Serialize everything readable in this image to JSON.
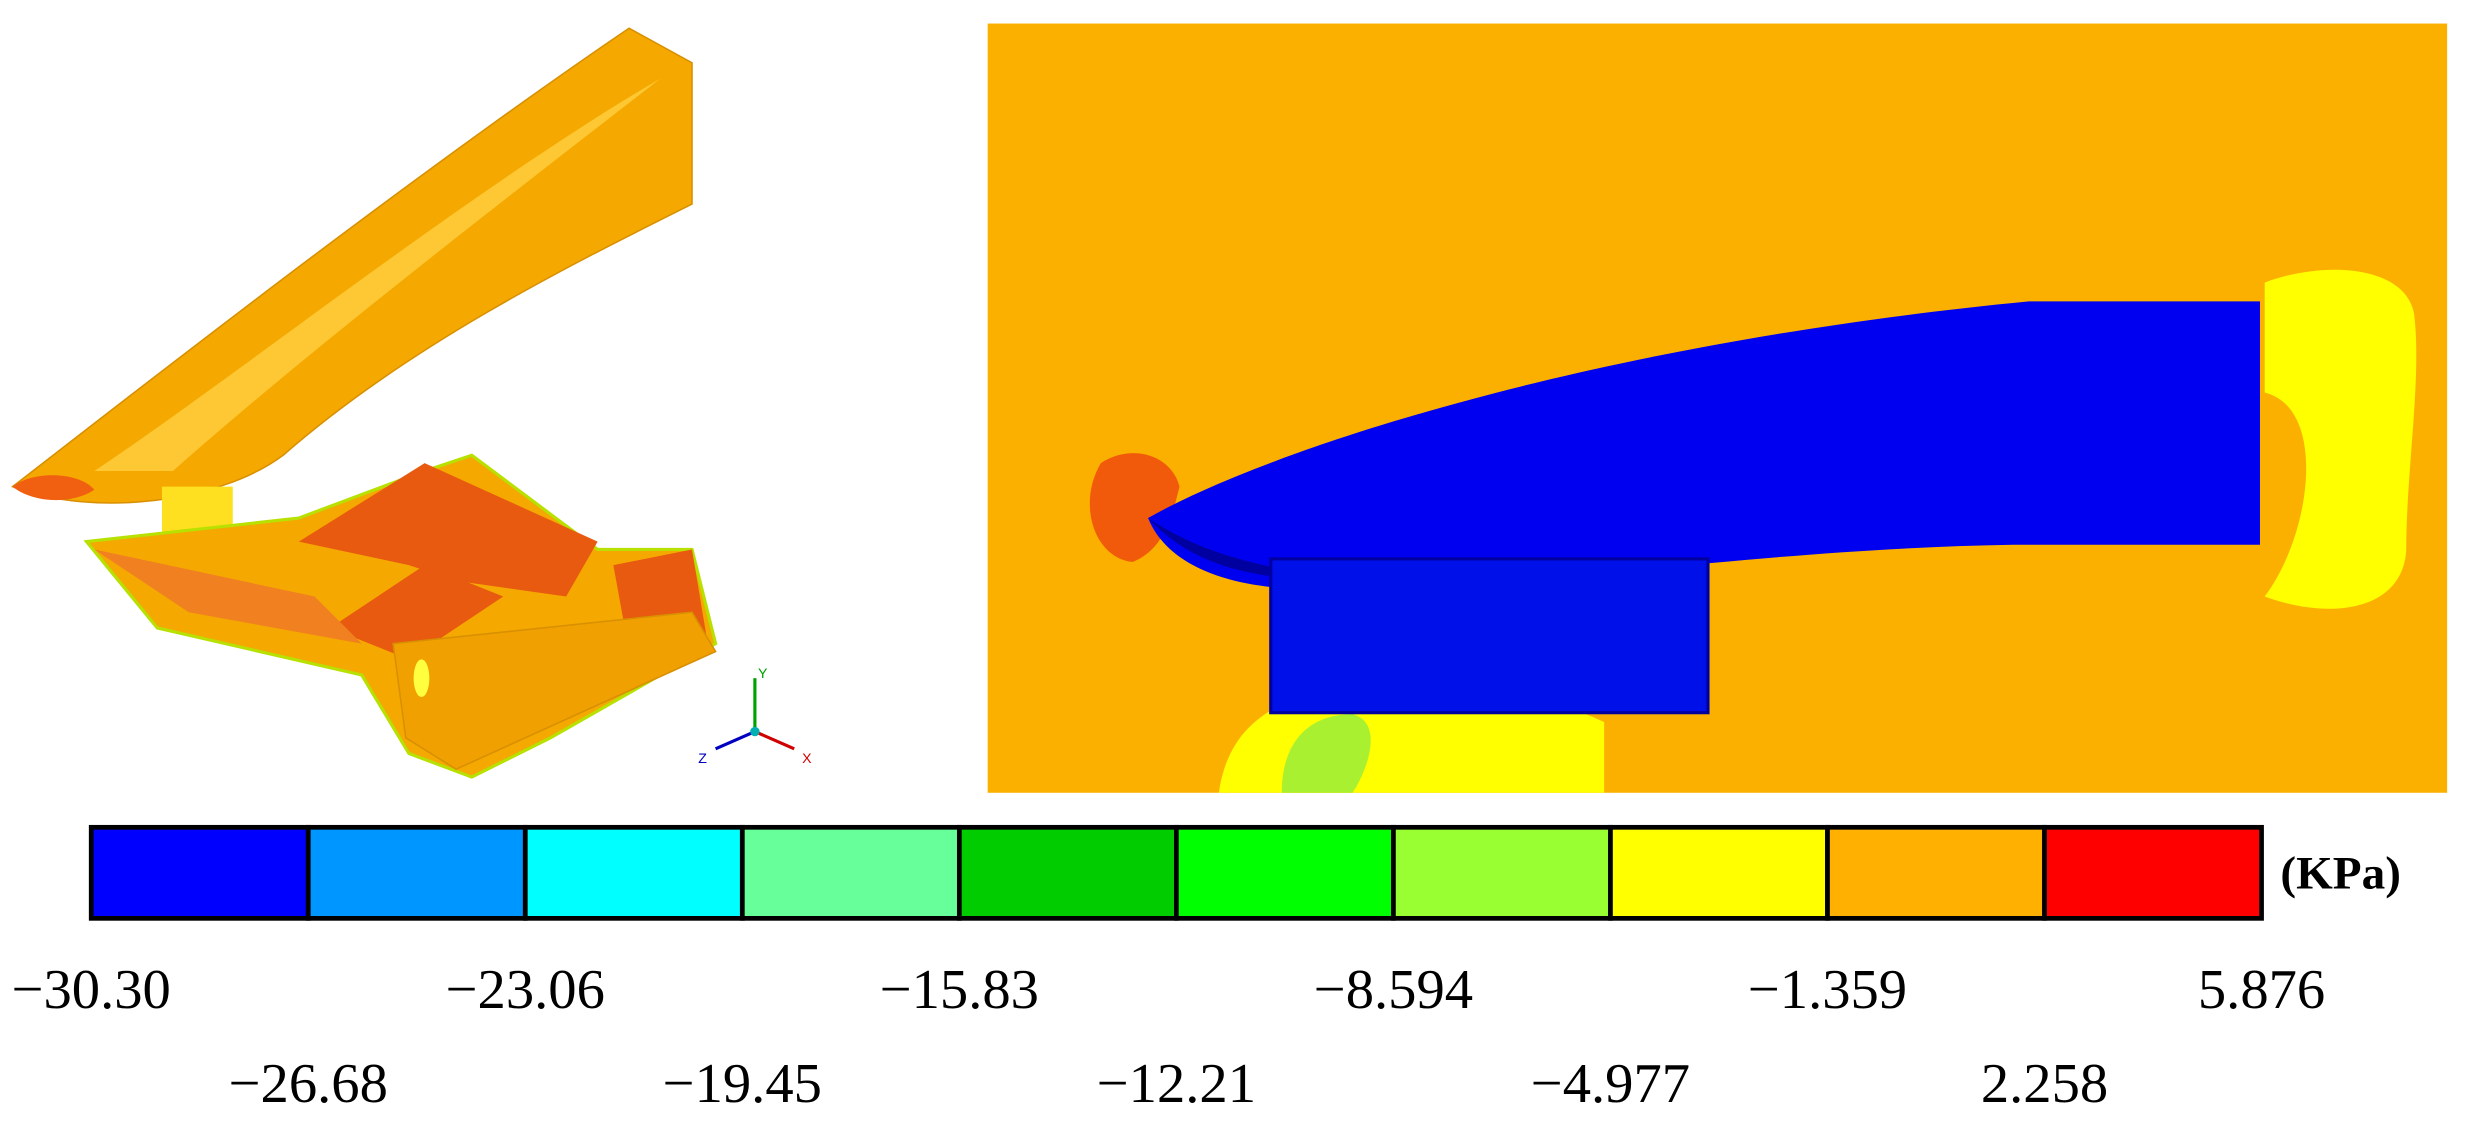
{
  "colorbar": {
    "unit": "(KPa)",
    "colors": [
      "#0000ff",
      "#0096ff",
      "#00ffff",
      "#66ff99",
      "#00cc00",
      "#00ff00",
      "#99ff33",
      "#ffff00",
      "#ffb000",
      "#ff0000"
    ],
    "upper_labels": [
      "−30.30",
      "−23.06",
      "−15.83",
      "−8.594",
      "−1.359",
      "5.876"
    ],
    "lower_labels": [
      "−26.68",
      "−19.45",
      "−12.21",
      "−4.977",
      "2.258"
    ]
  },
  "triad": {
    "y": "Y",
    "z": "Z",
    "x": "X"
  }
}
